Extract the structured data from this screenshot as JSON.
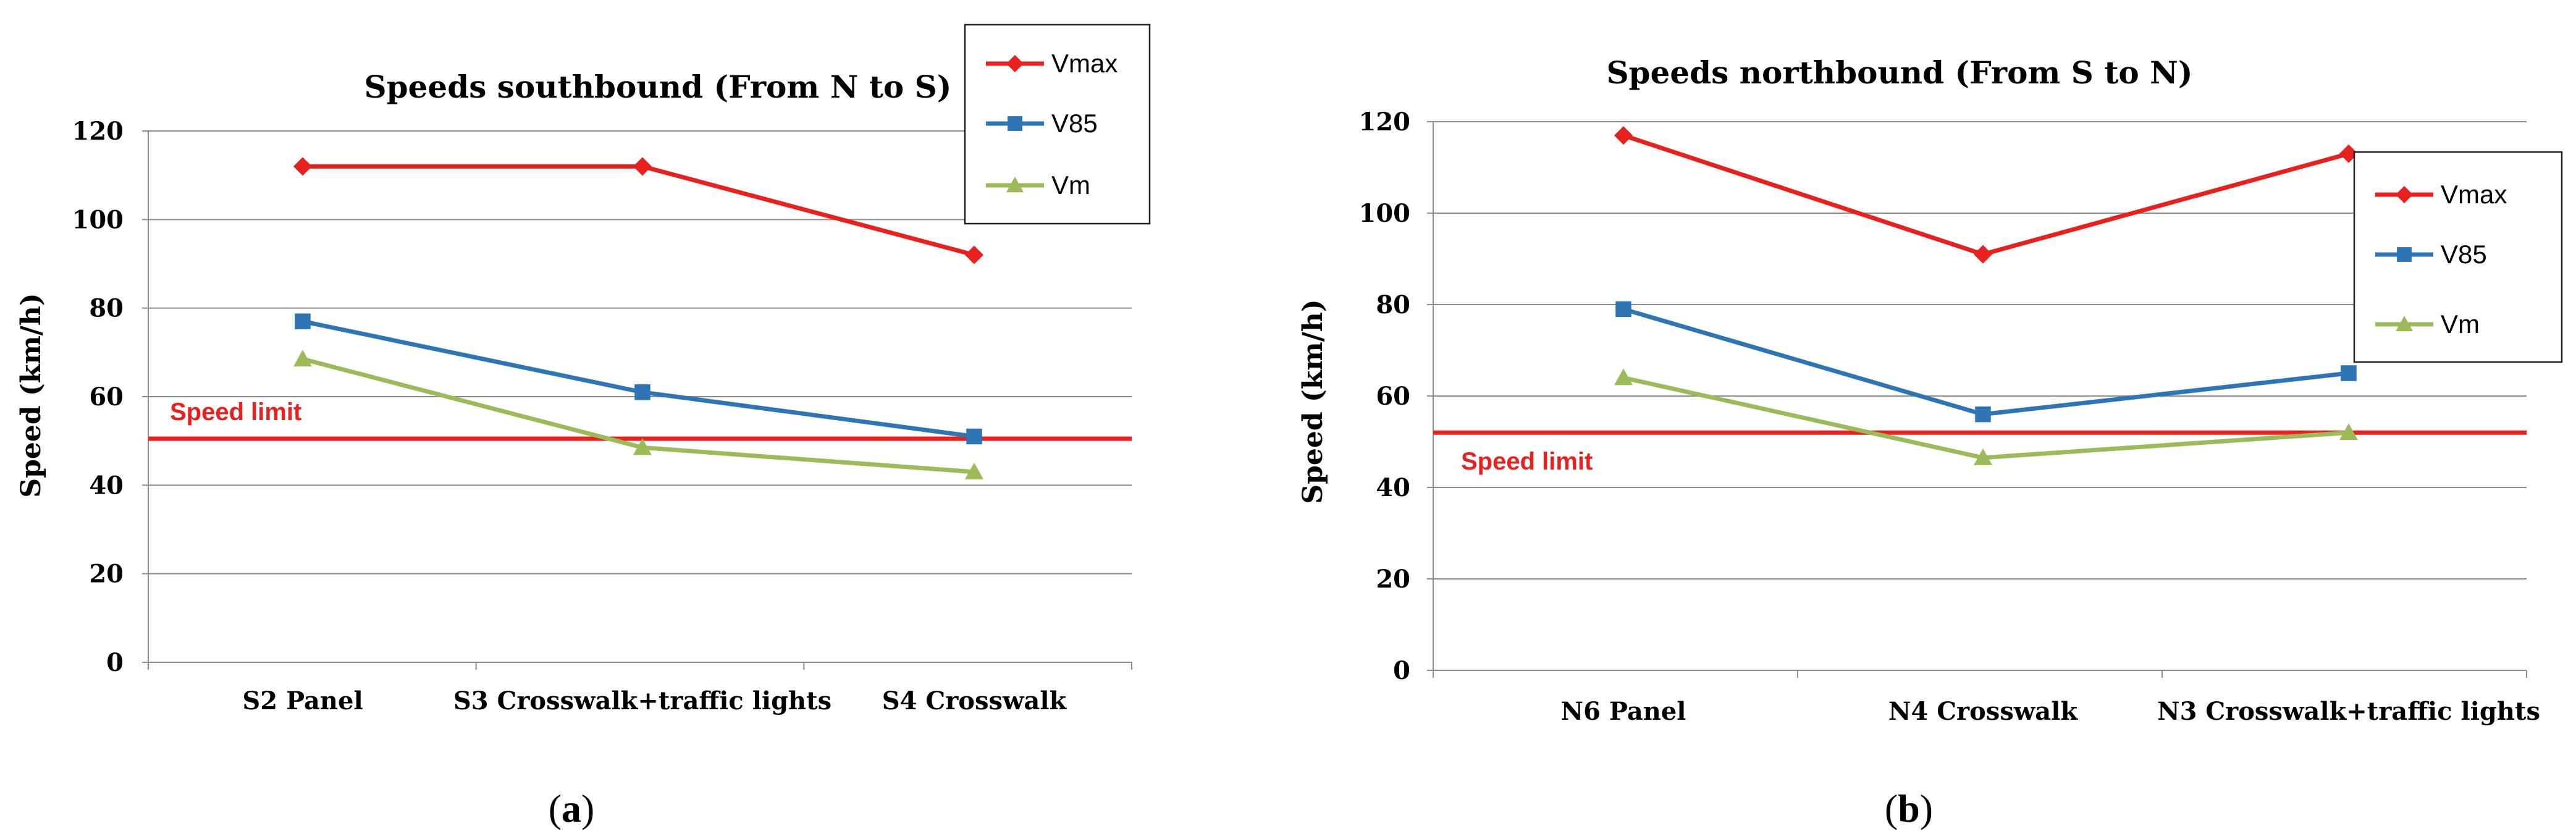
{
  "chart_data": [
    {
      "type": "line",
      "title": "Speeds southbound (From N to S)",
      "xlabel": "",
      "ylabel": "Speed (km/h)",
      "ylim": [
        0,
        120
      ],
      "yticks": [
        0,
        20,
        40,
        60,
        80,
        100,
        120
      ],
      "categories": [
        "S2 Panel",
        "S3 Crosswalk+traffic lights",
        "S4 Crosswalk"
      ],
      "series": [
        {
          "name": "Vmax",
          "values": [
            112,
            112,
            92
          ],
          "color": "#e8201e",
          "marker": "diamond"
        },
        {
          "name": "V85",
          "values": [
            77,
            61,
            51
          ],
          "color": "#2e75b6",
          "marker": "square"
        },
        {
          "name": "Vm",
          "values": [
            68.5,
            48.5,
            43
          ],
          "color": "#9bbb59",
          "marker": "triangle"
        }
      ],
      "reference_line": {
        "label": "Speed limit",
        "value": 50.5,
        "color": "#e8201e"
      },
      "legend": "top-right",
      "grid": true,
      "caption": {
        "open": "(",
        "letter": "a",
        "close": ")"
      }
    },
    {
      "type": "line",
      "title": "Speeds northbound (From S to N)",
      "xlabel": "",
      "ylabel": "Speed (km/h)",
      "ylim": [
        0,
        120
      ],
      "yticks": [
        0,
        20,
        40,
        60,
        80,
        100,
        120
      ],
      "categories": [
        "N6 Panel",
        "N4 Crosswalk",
        "N3 Crosswalk+traffic lights"
      ],
      "series": [
        {
          "name": "Vmax",
          "values": [
            117,
            91,
            113
          ],
          "color": "#e8201e",
          "marker": "diamond"
        },
        {
          "name": "V85",
          "values": [
            79,
            56,
            65
          ],
          "color": "#2e75b6",
          "marker": "square"
        },
        {
          "name": "Vm",
          "values": [
            64,
            46.5,
            52
          ],
          "color": "#9bbb59",
          "marker": "triangle"
        }
      ],
      "reference_line": {
        "label": "Speed limit",
        "value": 52,
        "color": "#e8201e"
      },
      "legend": "right",
      "grid": true,
      "caption": {
        "open": "(",
        "letter": "b",
        "close": ")"
      }
    }
  ]
}
